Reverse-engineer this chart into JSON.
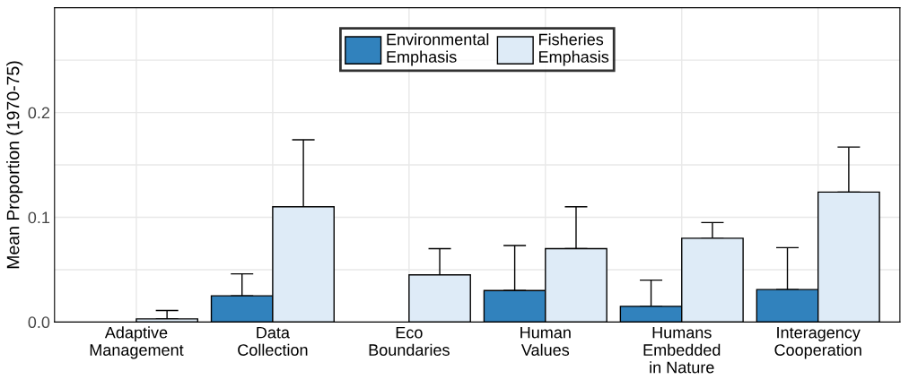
{
  "chart_data": {
    "type": "bar",
    "ylabel": "Mean Proportion (1970-75)",
    "categories": [
      "Adaptive\nManagement",
      "Data\nCollection",
      "Eco\nBoundaries",
      "Human\nValues",
      "Humans\nEmbedded\nin Nature",
      "Interagency\nCooperation"
    ],
    "series": [
      {
        "name": "Environmental\nEmphasis",
        "color": "#3182bd",
        "values": [
          null,
          0.025,
          null,
          0.03,
          0.015,
          0.031
        ],
        "errors": [
          null,
          [
            0.025,
            0.046
          ],
          null,
          [
            0.03,
            0.073
          ],
          [
            0.015,
            0.04
          ],
          [
            0.031,
            0.071
          ]
        ]
      },
      {
        "name": "Fisheries\nEmphasis",
        "color": "#deebf7",
        "values": [
          0.003,
          0.11,
          0.045,
          0.07,
          0.08,
          0.124
        ],
        "errors": [
          [
            0.003,
            0.011
          ],
          [
            0.11,
            0.174
          ],
          [
            0.045,
            0.07
          ],
          [
            0.07,
            0.11
          ],
          [
            0.08,
            0.095
          ],
          [
            0.124,
            0.167
          ]
        ]
      }
    ],
    "ylim": [
      0,
      0.3
    ],
    "yticks": [
      {
        "value": 0,
        "label": "0.0"
      },
      {
        "value": 0.05,
        "label": null
      },
      {
        "value": 0.1,
        "label": "0.1"
      },
      {
        "value": 0.15,
        "label": null
      },
      {
        "value": 0.2,
        "label": "0.2"
      },
      {
        "value": 0.25,
        "label": null
      }
    ],
    "grid": true,
    "legend": "top"
  }
}
